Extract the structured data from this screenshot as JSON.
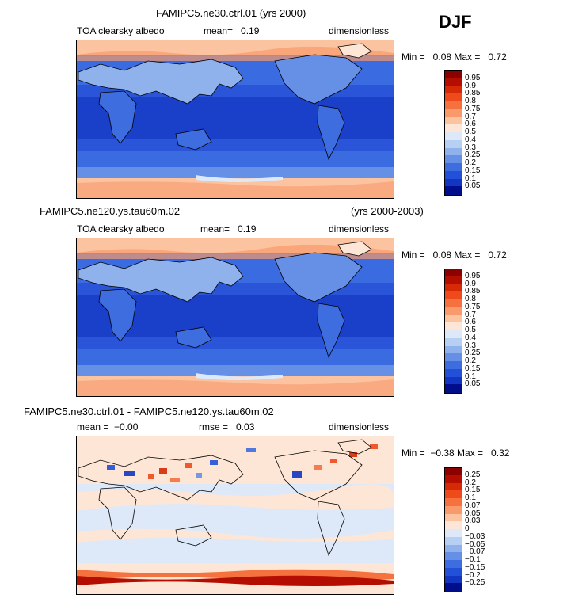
{
  "season": "DJF",
  "panels": [
    {
      "title": "FAMIPC5.ne30.ctrl.01 (yrs 2000)",
      "title_right": "",
      "variable": "TOA clearsky albedo",
      "stat1": "mean=   0.19",
      "stat2": "",
      "units": "dimensionless",
      "min_max": "Min =   0.08 Max =   0.72",
      "kind": "field"
    },
    {
      "title": "FAMIPC5.ne120.ys.tau60m.02",
      "title_right": "(yrs 2000-2003)",
      "variable": "TOA clearsky albedo",
      "stat1": "mean=   0.19",
      "stat2": "",
      "units": "dimensionless",
      "min_max": "Min =   0.08 Max =   0.72",
      "kind": "field"
    },
    {
      "title": "FAMIPC5.ne30.ctrl.01 - FAMIPC5.ne120.ys.tau60m.02",
      "title_right": "",
      "variable": "",
      "stat1": "mean =  −0.00",
      "stat2": "rmse =   0.03",
      "units": "dimensionless",
      "min_max": "Min =  −0.38 Max =   0.32",
      "kind": "diff"
    }
  ],
  "colorbars": {
    "field": {
      "labels": [
        "0.95",
        "0.9",
        "0.85",
        "0.8",
        "0.75",
        "0.7",
        "0.6",
        "0.5",
        "0.4",
        "0.3",
        "0.25",
        "0.2",
        "0.15",
        "0.1",
        "0.05"
      ],
      "colors": [
        "#8c0000",
        "#b30e00",
        "#d62a06",
        "#ef4a1c",
        "#f5713e",
        "#f89a6b",
        "#fcc3a0",
        "#fde6d6",
        "#dde9f8",
        "#b6cff2",
        "#8fb1ec",
        "#6690e5",
        "#3e6de0",
        "#2350d8",
        "#1236c2",
        "#000e8c"
      ]
    },
    "diff": {
      "labels": [
        "0.25",
        "0.2",
        "0.15",
        "0.1",
        "0.07",
        "0.05",
        "0.03",
        "0",
        "−0.03",
        "−0.05",
        "−0.07",
        "−0.1",
        "−0.15",
        "−0.2",
        "−0.25"
      ],
      "colors": [
        "#8c0000",
        "#b30e00",
        "#d62a06",
        "#ef4a1c",
        "#f5713e",
        "#f89a6b",
        "#fcc3a0",
        "#fde6d6",
        "#dde9f8",
        "#b6cff2",
        "#8fb1ec",
        "#6690e5",
        "#3e6de0",
        "#2350d8",
        "#1236c2",
        "#000e8c"
      ]
    }
  }
}
